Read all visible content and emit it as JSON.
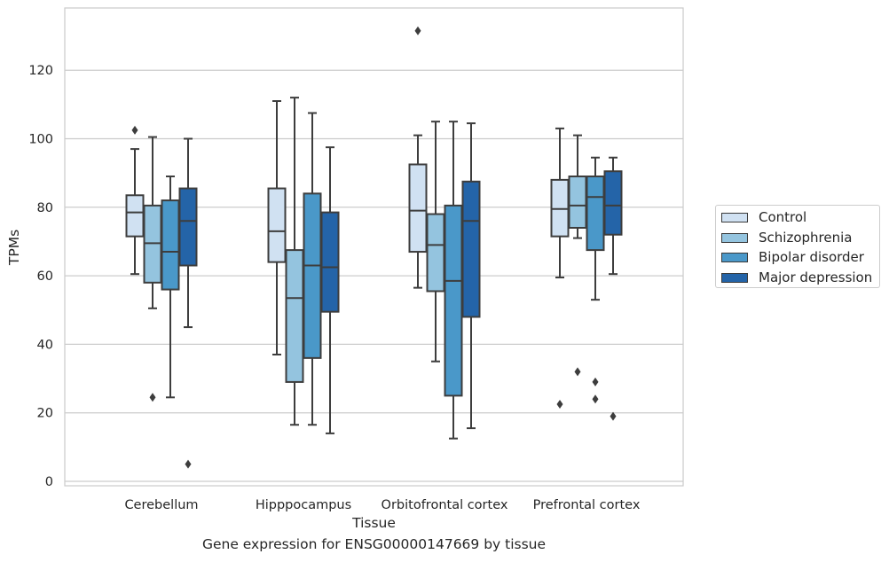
{
  "caption": "Gene expression for ENSG00000147669 by tissue",
  "chart_data": {
    "type": "boxplot",
    "title": "",
    "xlabel": "Tissue",
    "ylabel": "TPMs",
    "ylim": [
      -1,
      137
    ],
    "yticks": [
      0,
      20,
      40,
      60,
      80,
      100,
      120
    ],
    "grid": "horizontal",
    "legend_position": "right",
    "categories": [
      "Cerebellum",
      "Hipppocampus",
      "Orbitofrontal cortex",
      "Prefrontal cortex"
    ],
    "series": [
      {
        "name": "Control",
        "color": "#d0e1f2",
        "boxes": [
          {
            "whislo": 60.5,
            "q1": 71.5,
            "med": 78.5,
            "q3": 83.5,
            "whishi": 97,
            "fliers": [
              102.5
            ]
          },
          {
            "whislo": 37,
            "q1": 64,
            "med": 73,
            "q3": 85.5,
            "whishi": 111,
            "fliers": []
          },
          {
            "whislo": 56.5,
            "q1": 67,
            "med": 79,
            "q3": 92.5,
            "whishi": 101,
            "fliers": [
              131.5
            ]
          },
          {
            "whislo": 59.5,
            "q1": 71.5,
            "med": 79.5,
            "q3": 88,
            "whishi": 103,
            "fliers": [
              22.5
            ]
          }
        ]
      },
      {
        "name": "Schizophrenia",
        "color": "#94c4df",
        "boxes": [
          {
            "whislo": 50.5,
            "q1": 58,
            "med": 69.5,
            "q3": 80.5,
            "whishi": 100.5,
            "fliers": [
              24.5
            ]
          },
          {
            "whislo": 16.5,
            "q1": 29,
            "med": 53.5,
            "q3": 67.5,
            "whishi": 112,
            "fliers": []
          },
          {
            "whislo": 35,
            "q1": 55.5,
            "med": 69,
            "q3": 78,
            "whishi": 105,
            "fliers": []
          },
          {
            "whislo": 71,
            "q1": 74,
            "med": 80.5,
            "q3": 89,
            "whishi": 101,
            "fliers": [
              32
            ]
          }
        ]
      },
      {
        "name": "Bipolar disorder",
        "color": "#4a98c9",
        "boxes": [
          {
            "whislo": 24.5,
            "q1": 56,
            "med": 67,
            "q3": 82,
            "whishi": 89,
            "fliers": []
          },
          {
            "whislo": 16.5,
            "q1": 36,
            "med": 63,
            "q3": 84,
            "whishi": 107.5,
            "fliers": []
          },
          {
            "whislo": 12.5,
            "q1": 25,
            "med": 58.5,
            "q3": 80.5,
            "whishi": 105,
            "fliers": []
          },
          {
            "whislo": 53,
            "q1": 67.5,
            "med": 83,
            "q3": 89,
            "whishi": 94.5,
            "fliers": [
              29,
              24
            ]
          }
        ]
      },
      {
        "name": "Major depression",
        "color": "#2464a8",
        "boxes": [
          {
            "whislo": 45,
            "q1": 63,
            "med": 76,
            "q3": 85.5,
            "whishi": 100,
            "fliers": [
              5
            ]
          },
          {
            "whislo": 14,
            "q1": 49.5,
            "med": 62.5,
            "q3": 78.5,
            "whishi": 97.5,
            "fliers": []
          },
          {
            "whislo": 15.5,
            "q1": 48,
            "med": 76,
            "q3": 87.5,
            "whishi": 104.5,
            "fliers": []
          },
          {
            "whislo": 60.5,
            "q1": 72,
            "med": 80.5,
            "q3": 90.5,
            "whishi": 94.5,
            "fliers": [
              19
            ]
          }
        ]
      }
    ]
  }
}
